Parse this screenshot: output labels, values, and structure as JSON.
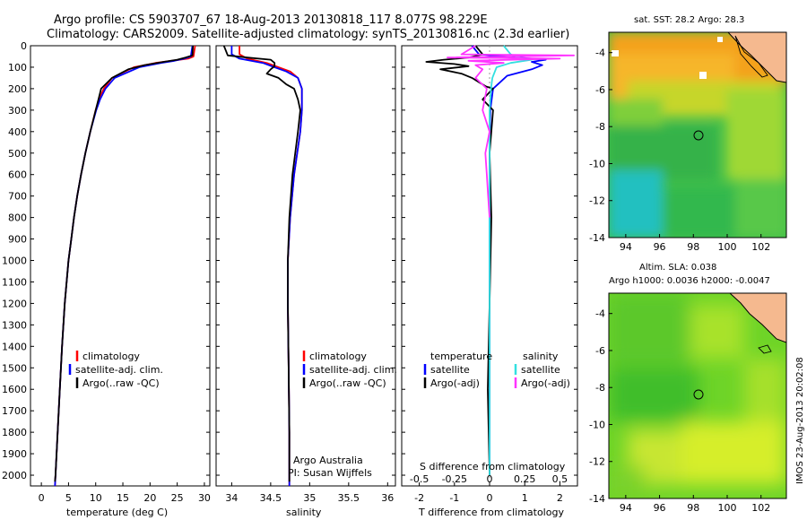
{
  "title": {
    "line1": "Argo profile: CS 5903707_67 18-Aug-2013 20130818_117 8.077S 98.229E",
    "line2": "Climatology: CARS2009. Satellite-adjusted climatology: synTS_20130816.nc (2.3d earlier)"
  },
  "depth_ticks": [
    "0",
    "100",
    "200",
    "300",
    "400",
    "500",
    "600",
    "700",
    "800",
    "900",
    "1000",
    "1100",
    "1200",
    "1300",
    "1400",
    "1500",
    "1600",
    "1700",
    "1800",
    "1900",
    "2000"
  ],
  "colors": {
    "climatology": "#ff0000",
    "satellite": "#0000ff",
    "argo": "#000000",
    "sal_satellite": "#33e0e0",
    "sal_argo": "#ff33ff",
    "land": "#f5b98f"
  },
  "chart_data": [
    {
      "type": "line",
      "panel": "temperature",
      "xlabel": "temperature (deg C)",
      "ylabel": "",
      "xlim": [
        -2,
        31
      ],
      "ylim": [
        2050,
        0
      ],
      "xticks": [
        "0",
        "5",
        "10",
        "15",
        "20",
        "25",
        "30"
      ],
      "legend": [
        "climatology",
        "satellite-adj. clim.",
        "Argo(..raw -QC)"
      ],
      "series": [
        {
          "name": "climatology",
          "color": "#ff0000",
          "depth": [
            0,
            50,
            60,
            70,
            80,
            100,
            150,
            200,
            250,
            300,
            400,
            500,
            600,
            700,
            800,
            900,
            1000,
            1200,
            1400,
            1600,
            1800,
            2000,
            2050
          ],
          "values": [
            28.3,
            28.0,
            27.0,
            24.0,
            21.0,
            17.0,
            13.0,
            11.5,
            10.6,
            10.0,
            9.0,
            8.1,
            7.3,
            6.6,
            6.0,
            5.5,
            5.0,
            4.3,
            3.8,
            3.4,
            3.0,
            2.6,
            2.5
          ]
        },
        {
          "name": "satellite-adj. clim.",
          "color": "#0000ff",
          "depth": [
            0,
            50,
            60,
            70,
            80,
            100,
            150,
            200,
            250,
            300,
            400,
            500,
            600,
            700,
            800,
            900,
            1000,
            1200,
            1400,
            1600,
            1800,
            2000,
            2050
          ],
          "values": [
            27.8,
            27.5,
            26.3,
            24.5,
            22.0,
            18.0,
            13.5,
            11.8,
            10.8,
            10.1,
            9.0,
            8.1,
            7.3,
            6.6,
            6.0,
            5.5,
            5.0,
            4.3,
            3.8,
            3.4,
            3.0,
            2.6,
            2.5
          ]
        },
        {
          "name": "Argo(..raw -QC)",
          "color": "#000000",
          "depth": [
            0,
            45,
            55,
            65,
            75,
            90,
            110,
            150,
            200,
            250,
            300,
            400,
            500,
            600,
            700,
            800,
            900,
            1000,
            1200,
            1400,
            1600,
            1800,
            2000,
            2030
          ],
          "values": [
            27.9,
            27.8,
            26.5,
            25.0,
            22.5,
            19.0,
            16.0,
            13.0,
            11.0,
            10.5,
            10.0,
            9.0,
            8.1,
            7.3,
            6.6,
            6.0,
            5.5,
            5.0,
            4.3,
            3.8,
            3.4,
            3.0,
            2.6,
            2.5
          ]
        }
      ]
    },
    {
      "type": "line",
      "panel": "salinity",
      "xlabel": "salinity",
      "ylabel": "",
      "xlim": [
        33.8,
        36.1
      ],
      "ylim": [
        2050,
        0
      ],
      "xticks": [
        "34",
        "34.5",
        "35",
        "35.5",
        "36"
      ],
      "legend": [
        "climatology",
        "satellite-adj. clim.",
        "Argo(..raw -QC)"
      ],
      "annotation": [
        "Argo Australia",
        "PI: Susan Wijffels"
      ],
      "series": [
        {
          "name": "climatology",
          "color": "#ff0000",
          "depth": [
            0,
            40,
            60,
            80,
            100,
            120,
            150,
            200,
            300,
            400,
            600,
            800,
            1000,
            1200,
            1500,
            1800,
            2050
          ],
          "values": [
            34.1,
            34.1,
            34.2,
            34.45,
            34.6,
            34.75,
            34.85,
            34.9,
            34.9,
            34.88,
            34.8,
            34.75,
            34.72,
            34.72,
            34.73,
            34.74,
            34.74
          ]
        },
        {
          "name": "satellite-adj. clim.",
          "color": "#0000ff",
          "depth": [
            0,
            40,
            60,
            80,
            100,
            120,
            150,
            200,
            300,
            400,
            600,
            800,
            1000,
            1200,
            1500,
            1800,
            2050
          ],
          "values": [
            34.0,
            34.0,
            34.1,
            34.4,
            34.55,
            34.7,
            34.85,
            34.9,
            34.9,
            34.88,
            34.8,
            34.75,
            34.72,
            34.72,
            34.73,
            34.74,
            34.74
          ]
        },
        {
          "name": "Argo(..raw -QC)",
          "color": "#000000",
          "depth": [
            0,
            45,
            55,
            65,
            80,
            95,
            110,
            130,
            150,
            180,
            200,
            250,
            300,
            400,
            600,
            800,
            1000,
            1200,
            1500,
            1800,
            2030
          ],
          "values": [
            33.9,
            33.95,
            34.2,
            34.5,
            34.55,
            34.55,
            34.5,
            34.45,
            34.6,
            34.7,
            34.8,
            34.85,
            34.88,
            34.85,
            34.78,
            34.74,
            34.72,
            34.72,
            34.73,
            34.74,
            34.74
          ]
        }
      ]
    },
    {
      "type": "line",
      "panel": "difference",
      "xlabel": "T difference from climatology",
      "xlabel_top": "S difference from climatology",
      "xlim": [
        -2.5,
        2.5
      ],
      "ylim": [
        2050,
        0
      ],
      "xticks": [
        "-2",
        "-1",
        "0",
        "1",
        "2"
      ],
      "xticks_top": [
        "-0.5",
        "-0.25",
        "0",
        "0.25",
        "0.5"
      ],
      "legend": {
        "temperature": [
          "satellite",
          "Argo(-adj)"
        ],
        "salinity": [
          "satellite",
          "Argo(-adj)"
        ]
      },
      "series": [
        {
          "name": "temperature satellite",
          "color": "#0000ff",
          "depth": [
            0,
            40,
            55,
            65,
            75,
            90,
            110,
            140,
            170,
            200,
            300,
            500,
            800,
            1200,
            1600,
            2000
          ],
          "values": [
            -0.5,
            -0.3,
            0.8,
            1.6,
            1.2,
            1.5,
            1.2,
            0.5,
            0.3,
            0.1,
            0.02,
            0,
            0,
            0,
            0,
            0
          ]
        },
        {
          "name": "temperature Argo(-adj)",
          "color": "#000000",
          "depth": [
            0,
            40,
            55,
            65,
            75,
            85,
            95,
            110,
            130,
            150,
            170,
            190,
            200,
            250,
            300,
            500,
            800,
            1200,
            1600,
            2000
          ],
          "values": [
            -0.4,
            -0.2,
            -0.6,
            -1.3,
            -1.8,
            -1.0,
            -0.6,
            -1.4,
            -0.8,
            -0.5,
            -0.3,
            -0.1,
            0.1,
            -0.2,
            0.1,
            0,
            0.05,
            0,
            -0.05,
            0
          ]
        },
        {
          "name": "salinity satellite",
          "color": "#33e0e0",
          "depth": [
            0,
            40,
            55,
            65,
            80,
            100,
            150,
            200,
            300,
            500,
            800,
            1200,
            1600,
            2000
          ],
          "values": [
            0.1,
            0.15,
            0.2,
            0.3,
            0.15,
            0.05,
            0.02,
            0.01,
            0,
            0,
            0,
            0,
            0,
            0
          ]
        },
        {
          "name": "salinity Argo(-adj)",
          "color": "#ff33ff",
          "depth": [
            0,
            40,
            45,
            55,
            60,
            70,
            80,
            90,
            110,
            150,
            200,
            300,
            400,
            500,
            600,
            700,
            800
          ],
          "values": [
            -0.1,
            -0.2,
            0.6,
            -0.3,
            0.5,
            -0.15,
            0.1,
            -0.1,
            -0.05,
            -0.1,
            -0.02,
            -0.05,
            0,
            -0.03,
            -0.02,
            -0.01,
            0
          ]
        }
      ]
    }
  ],
  "maps": {
    "top": {
      "title": "sat. SST: 28.2  Argo: 28.3",
      "yticks": [
        "-4",
        "-6",
        "-8",
        "-10",
        "-12",
        "-14"
      ],
      "xticks": [
        "94",
        "96",
        "98",
        "100",
        "102"
      ]
    },
    "bottom": {
      "title1": "Altim. SLA: 0.038",
      "title2": "Argo h1000: 0.0036 h2000: -0.0047",
      "yticks": [
        "-4",
        "-6",
        "-8",
        "-10",
        "-12",
        "-14"
      ],
      "xticks": [
        "94",
        "96",
        "98",
        "100",
        "102"
      ]
    }
  },
  "side_label": "IMOS 23-Aug-2013 20:02:08"
}
